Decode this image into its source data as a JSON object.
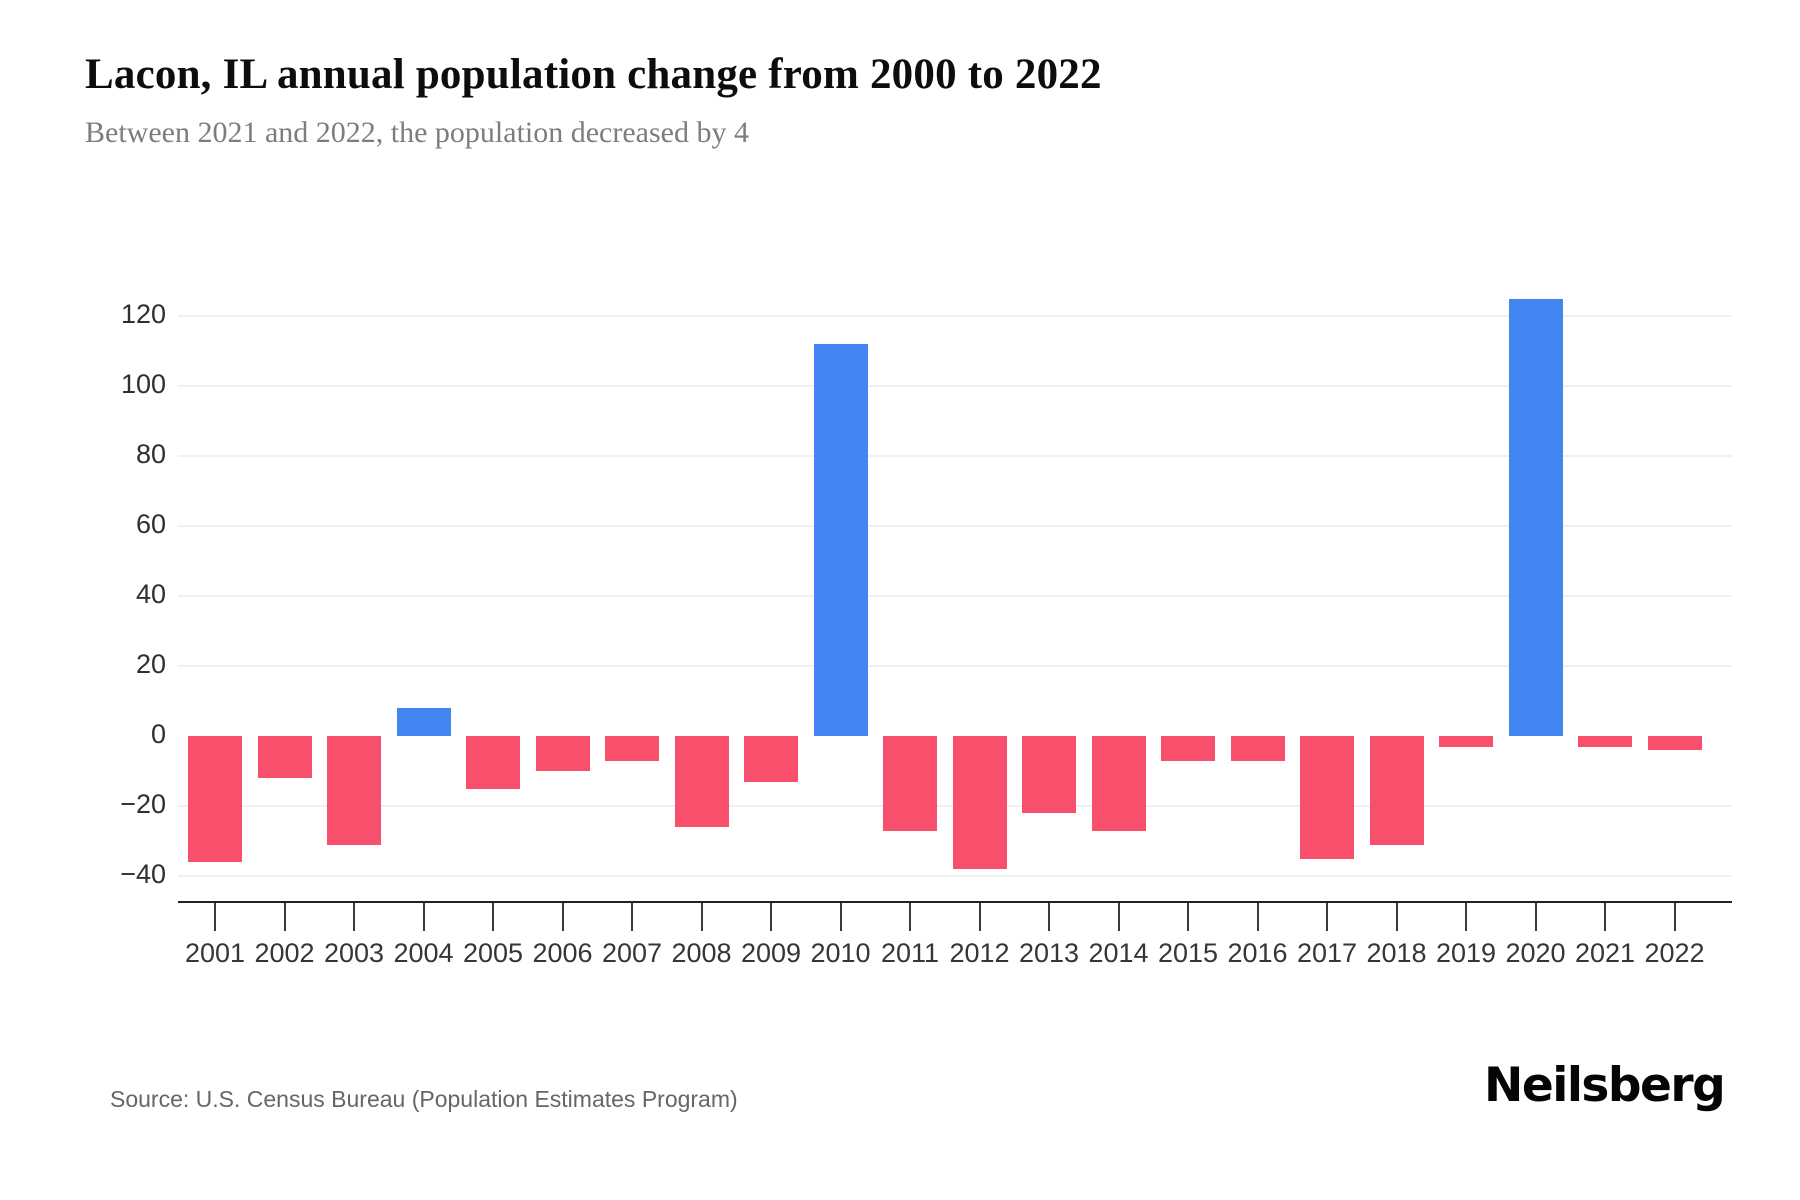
{
  "header": {
    "title": "Lacon, IL annual population change from 2000 to 2022",
    "subtitle": "Between 2021 and 2022, the population decreased by 4"
  },
  "chart_data": {
    "type": "bar",
    "title": "Lacon, IL annual population change from 2000 to 2022",
    "subtitle": "Between 2021 and 2022, the population decreased by 4",
    "categories": [
      "2001",
      "2002",
      "2003",
      "2004",
      "2005",
      "2006",
      "2007",
      "2008",
      "2009",
      "2010",
      "2011",
      "2012",
      "2013",
      "2014",
      "2015",
      "2016",
      "2017",
      "2018",
      "2019",
      "2020",
      "2021",
      "2022"
    ],
    "values": [
      -36,
      -12,
      -31,
      8,
      -15,
      -10,
      -7,
      -26,
      -13,
      112,
      -27,
      -38,
      -22,
      -27,
      -7,
      -7,
      -35,
      -31,
      -3,
      125,
      -3,
      -4
    ],
    "xlabel": "",
    "ylabel": "",
    "ylim": [
      -40,
      130
    ],
    "yticks": [
      120,
      100,
      80,
      60,
      40,
      20,
      0,
      -20,
      -40
    ],
    "grid": "horizontal",
    "legend": "none",
    "positive_color": "#4485F4",
    "negative_color": "#F8506C",
    "gridline_color": "#f0f0f0",
    "axis_color": "#222222"
  },
  "footer": {
    "source": "Source: U.S. Census Bureau (Population Estimates Program)",
    "brand": "Neilsberg"
  }
}
